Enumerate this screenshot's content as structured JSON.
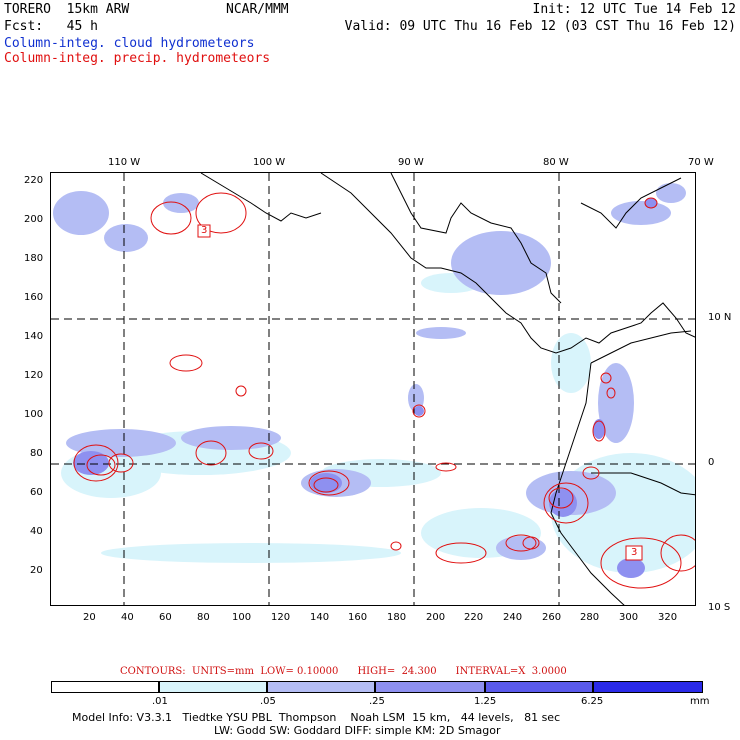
{
  "header": {
    "left_line1": "TORERO  15km ARW",
    "center_line1": "NCAR/MMM",
    "right_line1": "Init: 12 UTC Tue 14 Feb 12",
    "left_line2": "Fcst:   45 h",
    "right_line2": "Valid: 09 UTC Thu 16 Feb 12 (03 CST Thu 16 Feb 12)",
    "field_cloud": "Column-integ. cloud hydrometeors",
    "field_precip": "Column-integ. precip. hydrometeors"
  },
  "colors": {
    "cloud_text": "#1030d0",
    "precip_text": "#e01010",
    "coast": "#000000",
    "grid": "#000000",
    "contour": "#e01010",
    "fill_levels": [
      "#ffffff",
      "#d8f4fb",
      "#b4bdf4",
      "#8e90f0",
      "#5a5aeb",
      "#2a2ae8"
    ]
  },
  "map": {
    "top_lon_labels": [
      "110 W",
      "100 W",
      "90 W",
      "80 W",
      "70 W"
    ],
    "right_lat_labels": [
      "10 N",
      "0",
      "10 S"
    ],
    "left_y_labels": [
      "220",
      "200",
      "180",
      "160",
      "140",
      "120",
      "100",
      "80",
      "60",
      "40",
      "20"
    ],
    "bottom_x_labels": [
      "20",
      "40",
      "60",
      "80",
      "100",
      "120",
      "140",
      "160",
      "180",
      "200",
      "220",
      "240",
      "260",
      "280",
      "300",
      "320"
    ],
    "contour_marker_labels": [
      "3",
      "3"
    ]
  },
  "contour_info": {
    "label": "CONTOURS:  UNITS=mm  LOW= 0.10000      HIGH=  24.300      INTERVAL=X  3.0000"
  },
  "colorbar": {
    "labels": [
      ".01",
      ".05",
      ".25",
      "1.25",
      "6.25"
    ],
    "units": "mm"
  },
  "model_info": {
    "line1": "Model Info: V3.3.1   Tiedtke YSU PBL  Thompson    Noah LSM  15 km,   44 levels,   81 sec",
    "line2": "LW: Godd SW: Goddard DIFF: simple KM: 2D Smagor"
  }
}
